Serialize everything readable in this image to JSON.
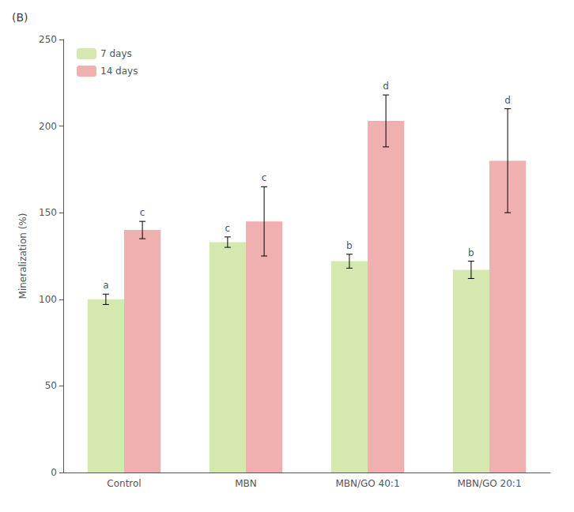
{
  "chart_data": {
    "type": "bar",
    "title": "(B)",
    "categories": [
      "Control",
      "MBN",
      "MBN/GO 40:1",
      "MBN/GO 20:1"
    ],
    "series": [
      {
        "name": "7 days",
        "color": "#d4e8b0",
        "values": [
          100,
          133,
          122,
          117
        ],
        "errors": [
          3,
          3,
          4,
          5
        ],
        "annotations": [
          "a",
          "c",
          "b",
          "b"
        ]
      },
      {
        "name": "14 days",
        "color": "#f0b0b0",
        "values": [
          140,
          145,
          203,
          180
        ],
        "errors": [
          5,
          20,
          15,
          30
        ],
        "annotations": [
          "c",
          "c",
          "d",
          "d"
        ]
      }
    ],
    "ylabel": "Mineralization (%)",
    "ylim": [
      0,
      250
    ],
    "yticks": [
      0,
      50,
      100,
      150,
      200,
      250
    ],
    "grid": false,
    "legend": "upper left"
  }
}
